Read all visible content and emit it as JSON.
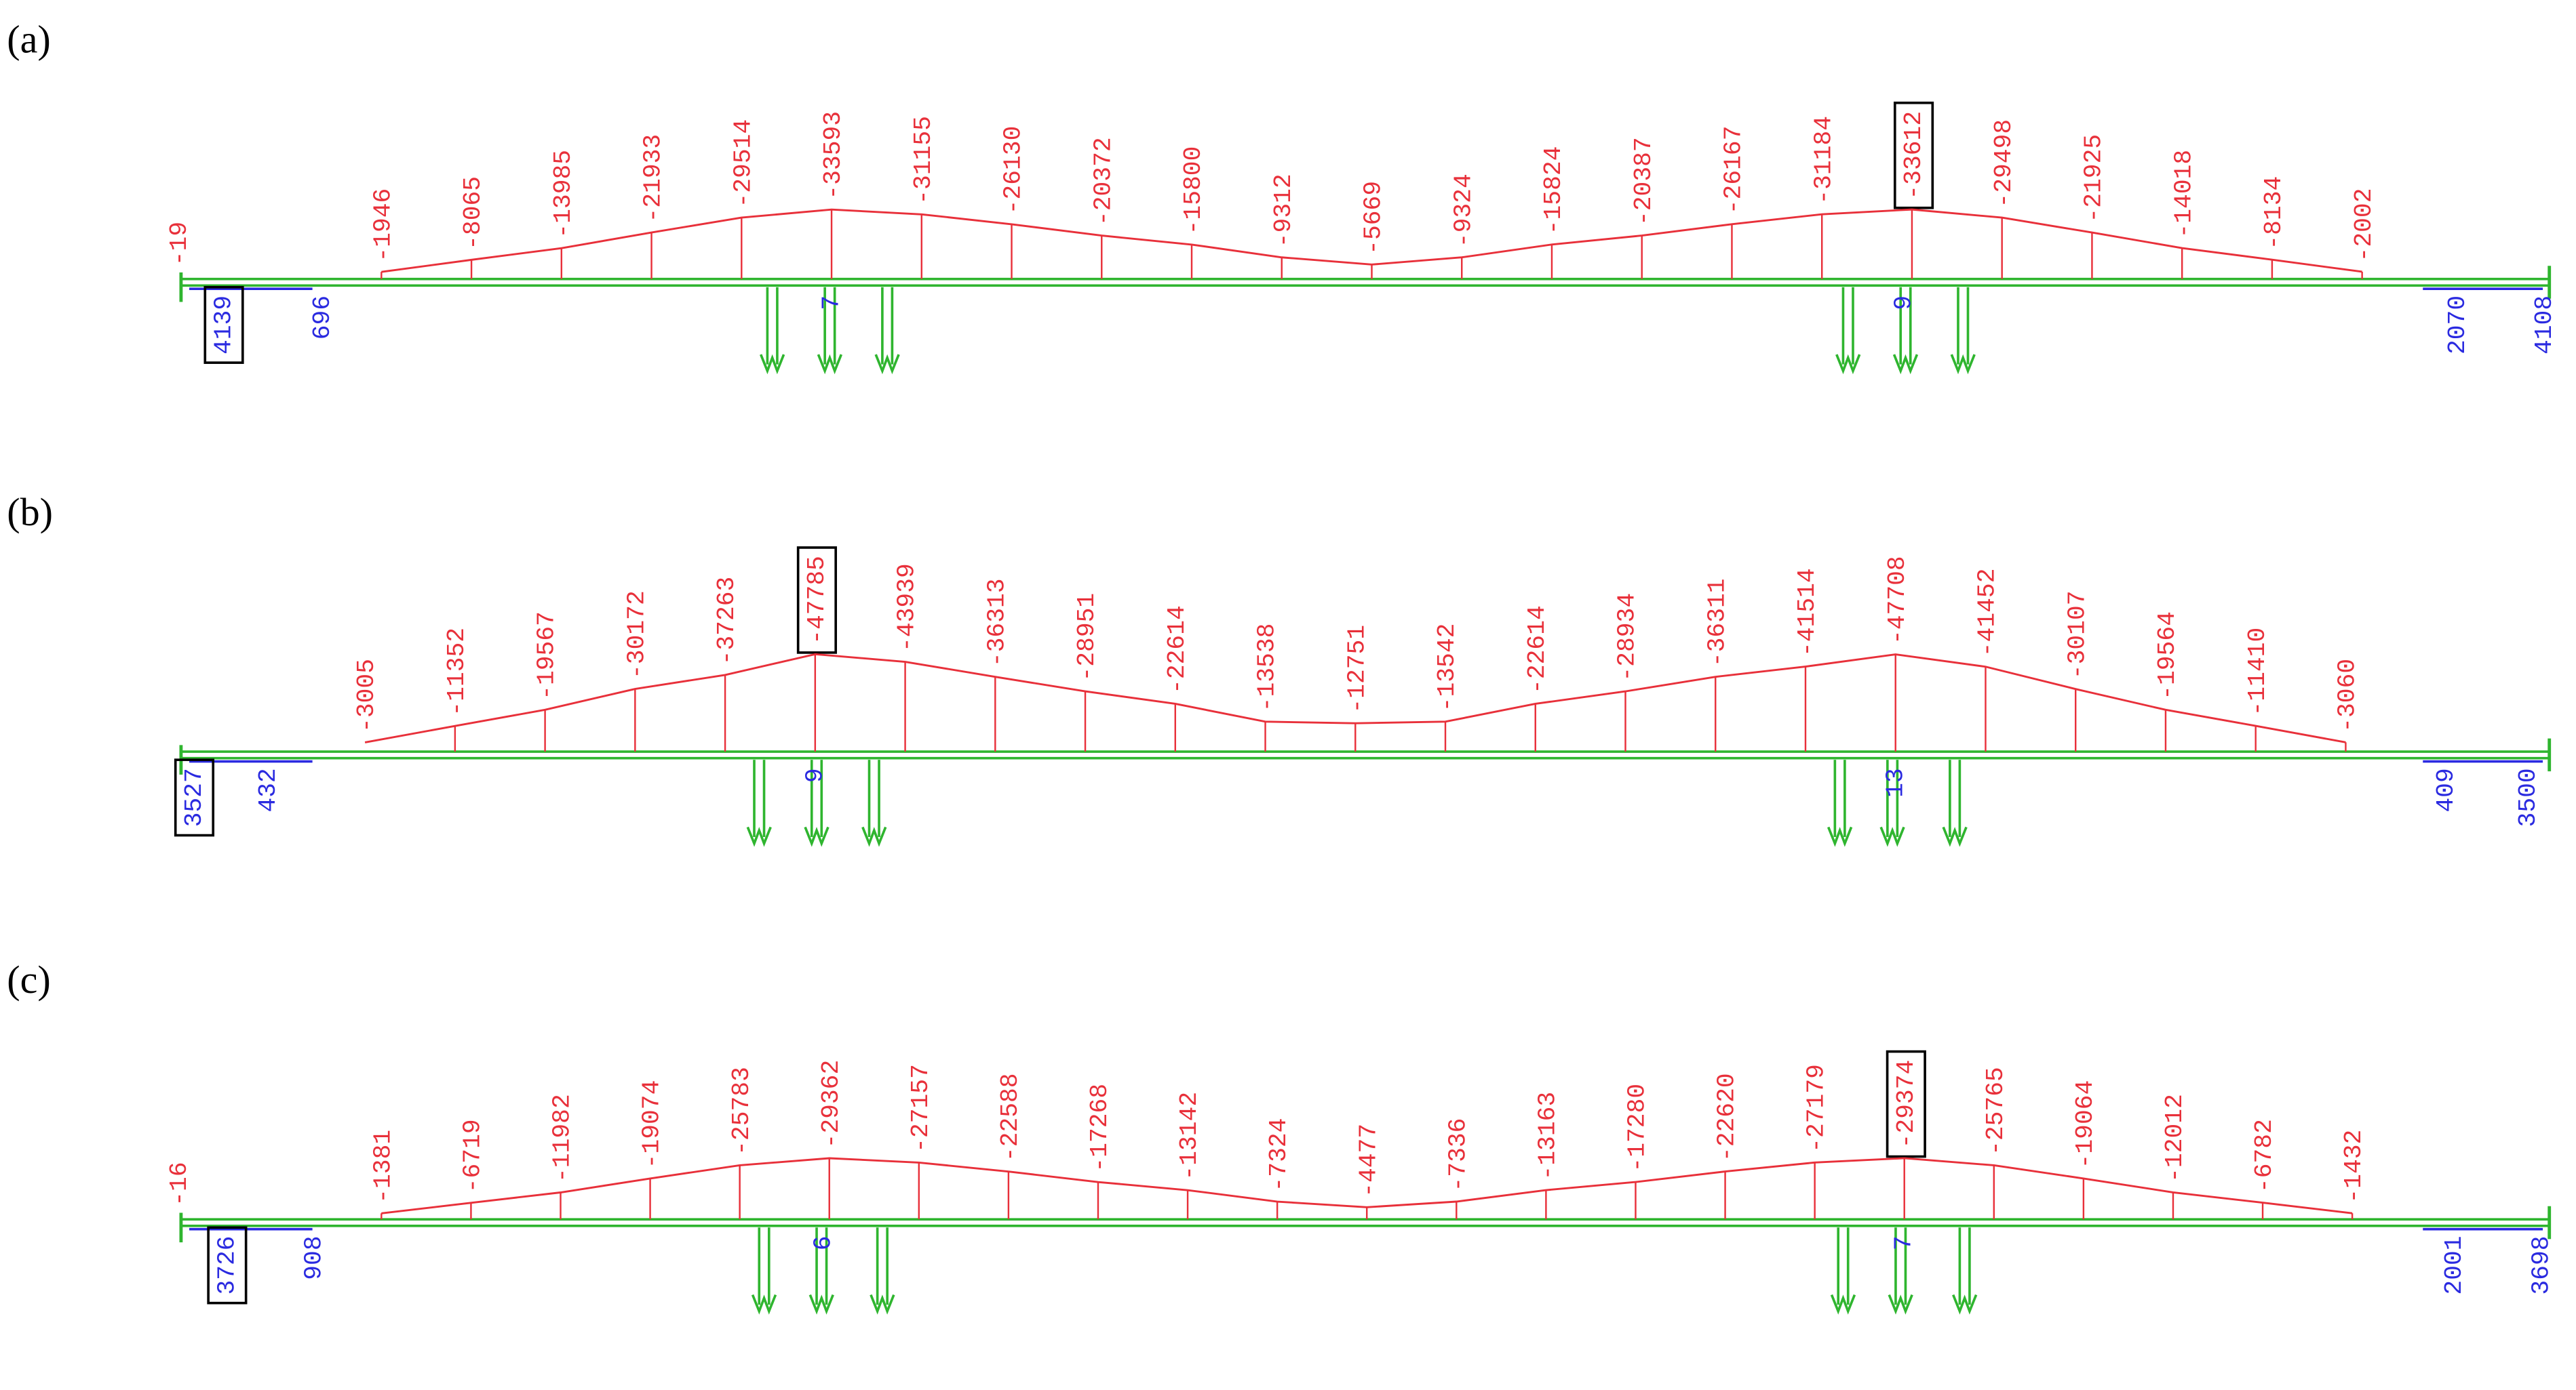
{
  "panels": [
    {
      "label": "(a)",
      "red_labels": [
        {
          "text": "-19"
        },
        {
          "text": "-1946"
        },
        {
          "text": "-8065"
        },
        {
          "text": "-13985"
        },
        {
          "text": "-21933"
        },
        {
          "text": "-29514"
        },
        {
          "text": "-33593"
        },
        {
          "text": "-31155"
        },
        {
          "text": "-26130"
        },
        {
          "text": "-20372"
        },
        {
          "text": "-15800"
        },
        {
          "text": "-9312"
        },
        {
          "text": "-5669"
        },
        {
          "text": "-9324"
        },
        {
          "text": "-15824"
        },
        {
          "text": "-20387"
        },
        {
          "text": "-26167"
        },
        {
          "text": "-31184"
        },
        {
          "text": "-33612",
          "boxed": true
        },
        {
          "text": "-29498"
        },
        {
          "text": "-21925"
        },
        {
          "text": "-14018"
        },
        {
          "text": "-8134"
        },
        {
          "text": "-2002"
        }
      ],
      "blue_labels": [
        {
          "text": "4139",
          "boxed": true
        },
        {
          "text": "696"
        },
        {
          "text": "7"
        },
        {
          "text": "9"
        },
        {
          "text": "2070"
        },
        {
          "text": "4108"
        }
      ]
    },
    {
      "label": "(b)",
      "red_labels": [
        {
          "text": "-3005"
        },
        {
          "text": "-11352"
        },
        {
          "text": "-19567"
        },
        {
          "text": "-30172"
        },
        {
          "text": "-37263"
        },
        {
          "text": "-47785",
          "boxed": true
        },
        {
          "text": "-43939"
        },
        {
          "text": "-36313"
        },
        {
          "text": "-28951"
        },
        {
          "text": "-22614"
        },
        {
          "text": "-13538"
        },
        {
          "text": "-12751"
        },
        {
          "text": "-13542"
        },
        {
          "text": "-22614"
        },
        {
          "text": "-28934"
        },
        {
          "text": "-36311"
        },
        {
          "text": "-41514"
        },
        {
          "text": "-47708"
        },
        {
          "text": "-41452"
        },
        {
          "text": "-30107"
        },
        {
          "text": "-19564"
        },
        {
          "text": "-11410"
        },
        {
          "text": "-3060"
        }
      ],
      "blue_labels": [
        {
          "text": "3527",
          "boxed": true
        },
        {
          "text": "432"
        },
        {
          "text": "9"
        },
        {
          "text": "13"
        },
        {
          "text": "409"
        },
        {
          "text": "3500"
        }
      ]
    },
    {
      "label": "(c)",
      "red_labels": [
        {
          "text": "-16"
        },
        {
          "text": "-1381"
        },
        {
          "text": "-6719"
        },
        {
          "text": "-11982"
        },
        {
          "text": "-19074"
        },
        {
          "text": "-25783"
        },
        {
          "text": "-29362"
        },
        {
          "text": "-27157"
        },
        {
          "text": "-22588"
        },
        {
          "text": "-17268"
        },
        {
          "text": "-13142"
        },
        {
          "text": "-7324"
        },
        {
          "text": "-4477"
        },
        {
          "text": "-7336"
        },
        {
          "text": "-13163"
        },
        {
          "text": "-17280"
        },
        {
          "text": "-22620"
        },
        {
          "text": "-27179"
        },
        {
          "text": "-29374",
          "boxed": true
        },
        {
          "text": "-25765"
        },
        {
          "text": "-19064"
        },
        {
          "text": "-12012"
        },
        {
          "text": "-6782"
        },
        {
          "text": "-1432"
        }
      ],
      "blue_labels": [
        {
          "text": "3726",
          "boxed": true
        },
        {
          "text": "908"
        },
        {
          "text": "6"
        },
        {
          "text": "7"
        },
        {
          "text": "2001"
        },
        {
          "text": "3698"
        }
      ]
    }
  ]
}
